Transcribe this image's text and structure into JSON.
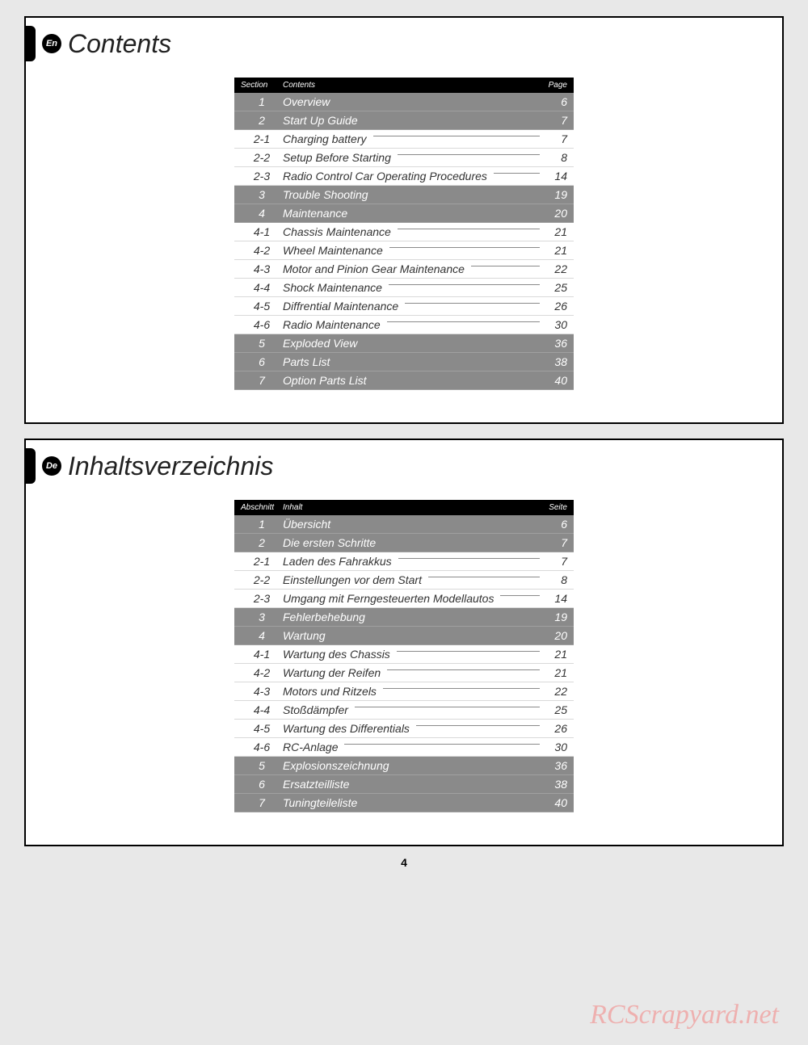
{
  "page_number": "4",
  "watermark": "RCScrapyard.net",
  "colors": {
    "page_bg": "#e8e8e8",
    "panel_bg": "#ffffff",
    "panel_border": "#000000",
    "section_row_bg": "#8a8a8a",
    "section_row_text": "#ffffff",
    "sub_row_text": "#333333",
    "leader": "#8a8a8a",
    "head_bg": "#000000",
    "head_text": "#ffffff",
    "watermark": "#efa6a4"
  },
  "panels": [
    {
      "lang_code": "En",
      "title": "Contents",
      "head": {
        "section": "Section",
        "contents": "Contents",
        "page": "Page"
      },
      "rows": [
        {
          "type": "section",
          "sec": "1",
          "label": "Overview",
          "page": "6"
        },
        {
          "type": "section",
          "sec": "2",
          "label": "Start Up Guide",
          "page": "7"
        },
        {
          "type": "sub",
          "sec": "2-1",
          "label": "Charging battery",
          "page": "7"
        },
        {
          "type": "sub",
          "sec": "2-2",
          "label": "Setup Before Starting",
          "page": "8"
        },
        {
          "type": "sub",
          "sec": "2-3",
          "label": "Radio Control Car Operating Procedures",
          "page": "14"
        },
        {
          "type": "section",
          "sec": "3",
          "label": "Trouble Shooting",
          "page": "19"
        },
        {
          "type": "section",
          "sec": "4",
          "label": "Maintenance",
          "page": "20"
        },
        {
          "type": "sub",
          "sec": "4-1",
          "label": "Chassis Maintenance",
          "page": "21"
        },
        {
          "type": "sub",
          "sec": "4-2",
          "label": "Wheel Maintenance",
          "page": "21"
        },
        {
          "type": "sub",
          "sec": "4-3",
          "label": "Motor and Pinion Gear Maintenance",
          "page": "22"
        },
        {
          "type": "sub",
          "sec": "4-4",
          "label": "Shock Maintenance",
          "page": "25"
        },
        {
          "type": "sub",
          "sec": "4-5",
          "label": "Diffrential Maintenance",
          "page": "26"
        },
        {
          "type": "sub",
          "sec": "4-6",
          "label": "Radio Maintenance",
          "page": "30"
        },
        {
          "type": "section",
          "sec": "5",
          "label": "Exploded View",
          "page": "36"
        },
        {
          "type": "section",
          "sec": "6",
          "label": "Parts List",
          "page": "38"
        },
        {
          "type": "section",
          "sec": "7",
          "label": "Option Parts List",
          "page": "40"
        }
      ]
    },
    {
      "lang_code": "De",
      "title": "Inhaltsverzeichnis",
      "head": {
        "section": "Abschnitt",
        "contents": "Inhalt",
        "page": "Seite"
      },
      "rows": [
        {
          "type": "section",
          "sec": "1",
          "label": "Übersicht",
          "page": "6"
        },
        {
          "type": "section",
          "sec": "2",
          "label": "Die ersten Schritte",
          "page": "7"
        },
        {
          "type": "sub",
          "sec": "2-1",
          "label": "Laden des Fahrakkus",
          "page": "7"
        },
        {
          "type": "sub",
          "sec": "2-2",
          "label": "Einstellungen vor dem Start",
          "page": "8"
        },
        {
          "type": "sub",
          "sec": "2-3",
          "label": "Umgang mit Ferngesteuerten Modellautos",
          "page": "14"
        },
        {
          "type": "section",
          "sec": "3",
          "label": "Fehlerbehebung",
          "page": "19"
        },
        {
          "type": "section",
          "sec": "4",
          "label": "Wartung",
          "page": "20"
        },
        {
          "type": "sub",
          "sec": "4-1",
          "label": "Wartung des Chassis",
          "page": "21"
        },
        {
          "type": "sub",
          "sec": "4-2",
          "label": "Wartung der Reifen",
          "page": "21"
        },
        {
          "type": "sub",
          "sec": "4-3",
          "label": "Motors und Ritzels",
          "page": "22"
        },
        {
          "type": "sub",
          "sec": "4-4",
          "label": "Stoßdämpfer",
          "page": "25"
        },
        {
          "type": "sub",
          "sec": "4-5",
          "label": "Wartung des Differentials",
          "page": "26"
        },
        {
          "type": "sub",
          "sec": "4-6",
          "label": "RC-Anlage",
          "page": "30"
        },
        {
          "type": "section",
          "sec": "5",
          "label": "Explosionszeichnung",
          "page": "36"
        },
        {
          "type": "section",
          "sec": "6",
          "label": "Ersatzteilliste",
          "page": "38"
        },
        {
          "type": "section",
          "sec": "7",
          "label": "Tuningteileliste",
          "page": "40"
        }
      ]
    }
  ]
}
